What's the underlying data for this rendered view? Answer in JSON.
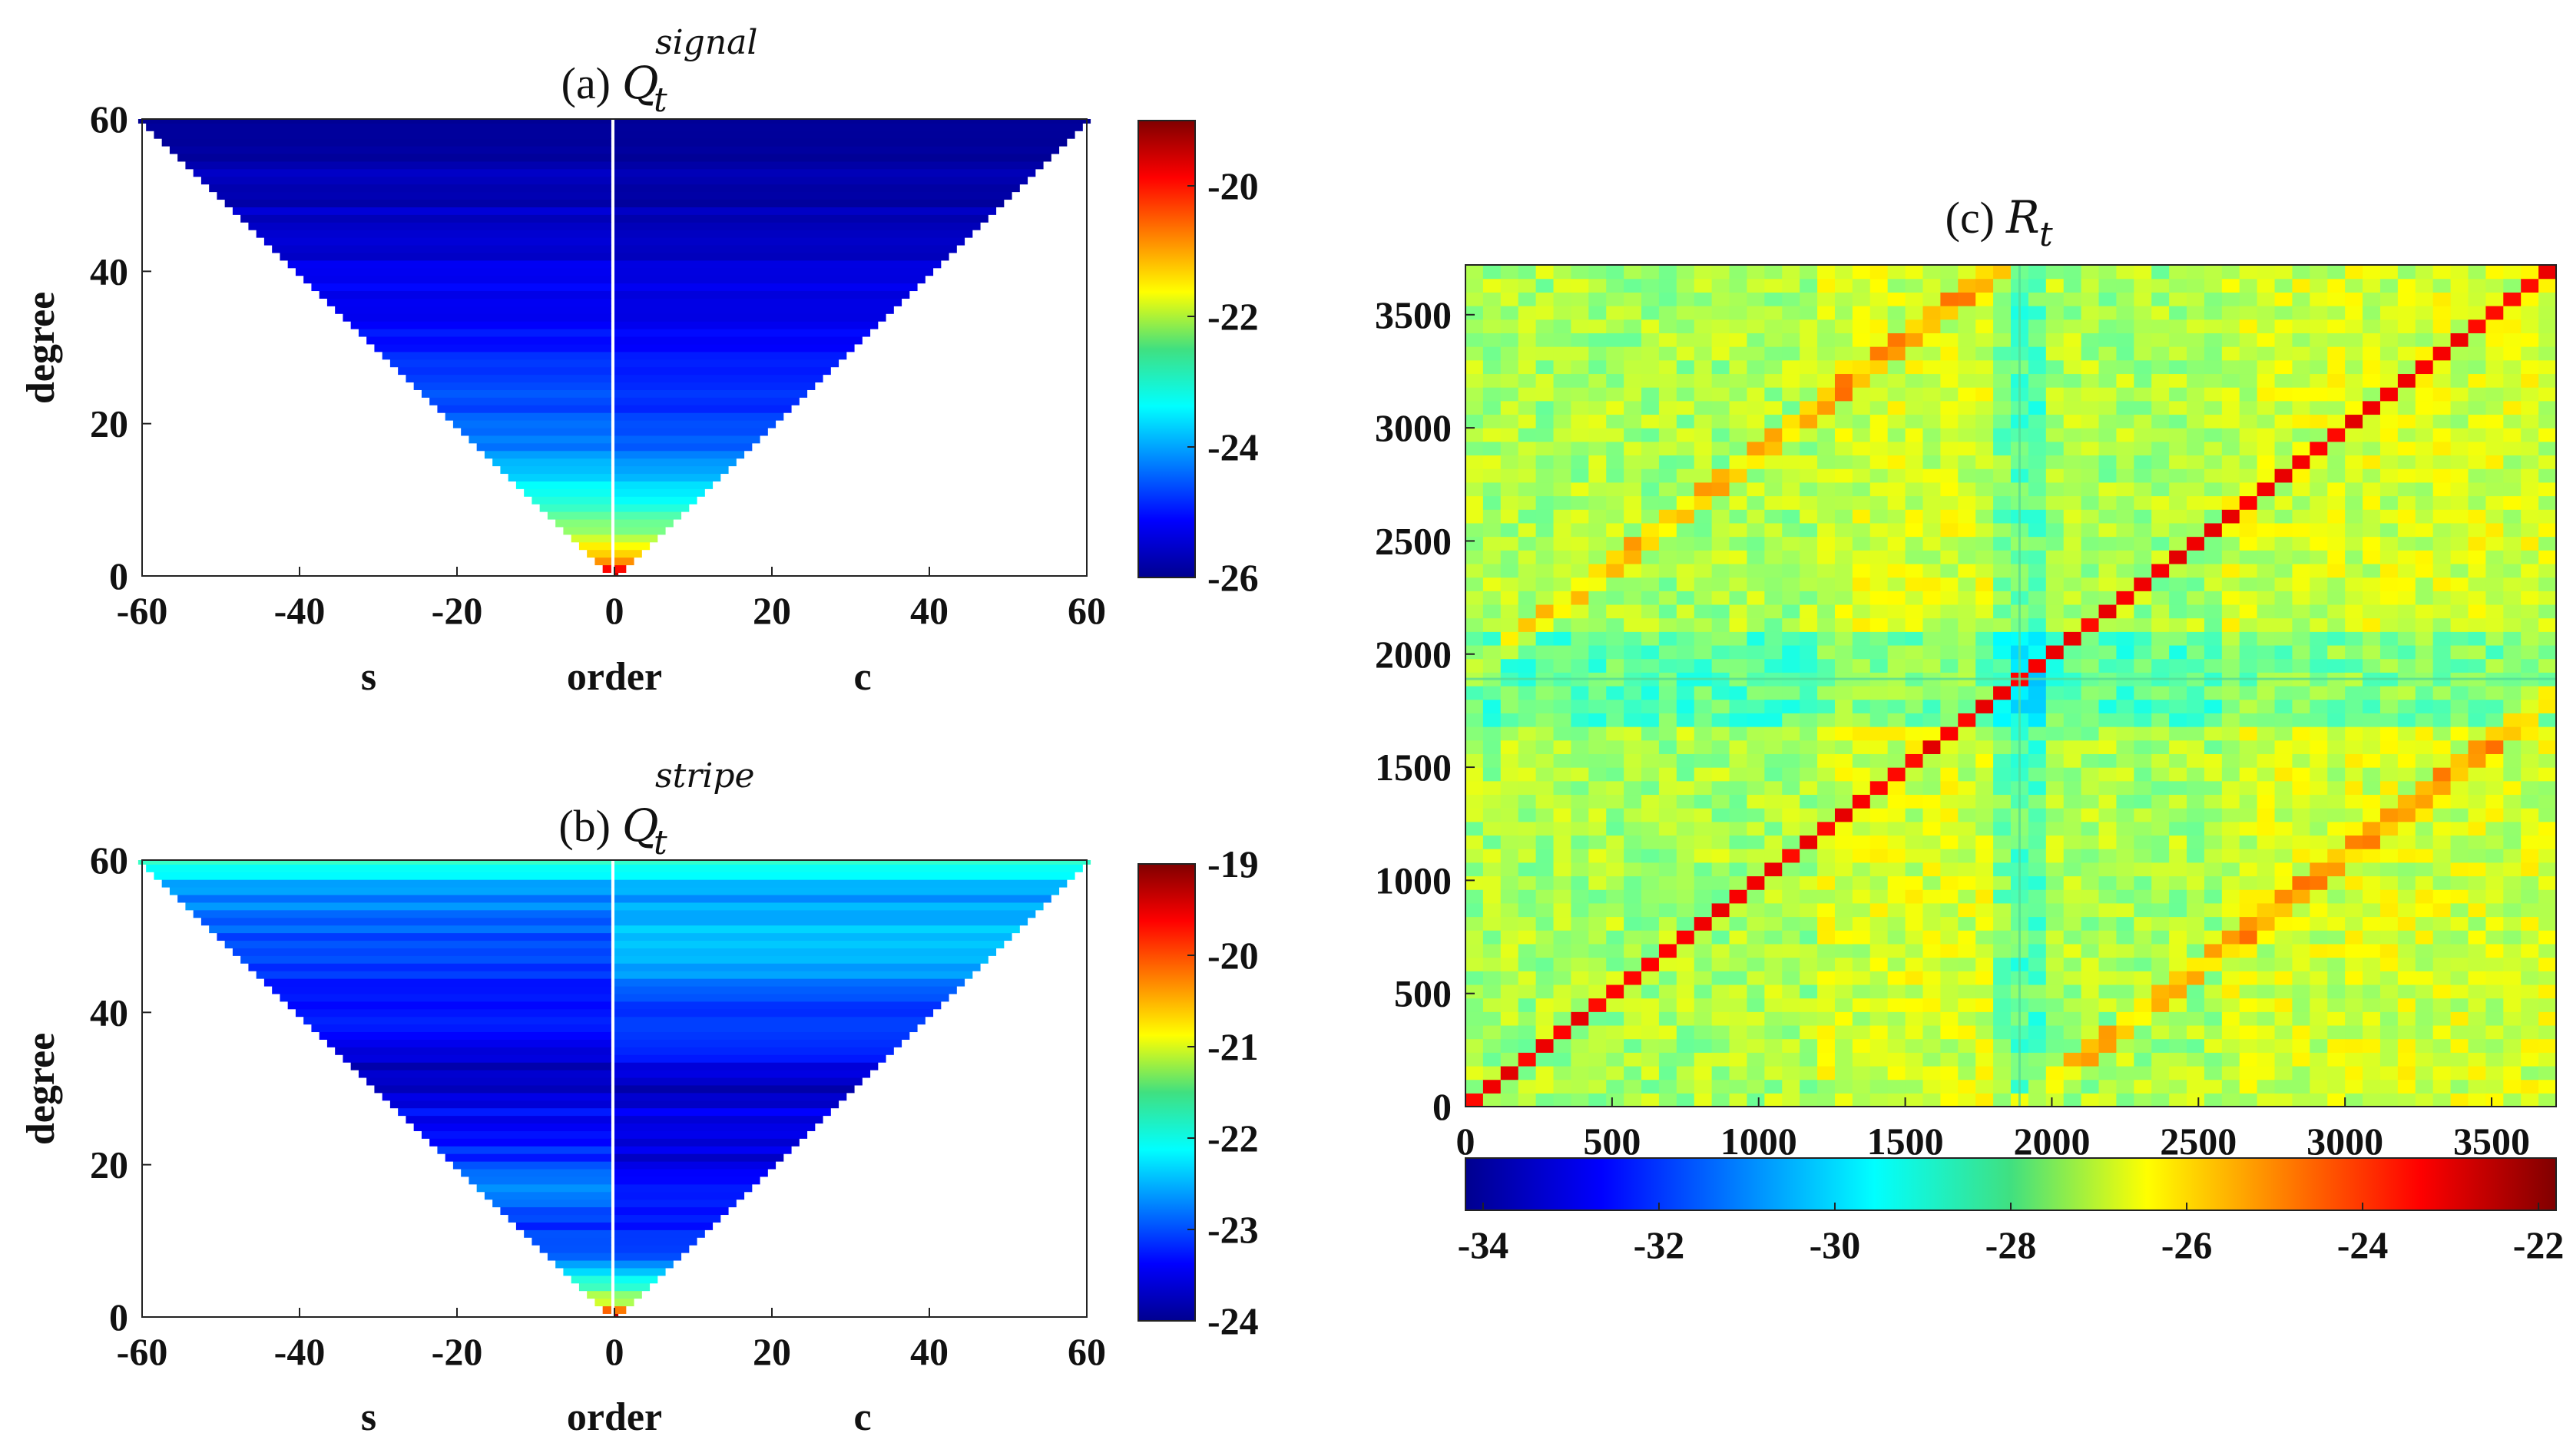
{
  "chart_data": [
    {
      "id": "a",
      "type": "heatmap",
      "title_prefix": "(a)",
      "title_symbol": "Q",
      "title_subscript": "t",
      "title_superscript": "signal",
      "xlabel_left": "s",
      "xlabel": "order",
      "xlabel_right": "c",
      "ylabel": "degree",
      "xlim": [
        -60,
        60
      ],
      "ylim": [
        0,
        60
      ],
      "xticks": [
        "-60",
        "-40",
        "-20",
        "0",
        "20",
        "40",
        "60"
      ],
      "yticks": [
        "0",
        "20",
        "40",
        "60"
      ],
      "colorbar": {
        "clim": [
          -26,
          -19
        ],
        "ticks": [
          "-20",
          "-22",
          "-24",
          "-26"
        ],
        "tick_values": [
          -20,
          -22,
          -24,
          -26
        ]
      },
      "degree_profile": {
        "degrees": [
          0,
          2,
          4,
          6,
          8,
          10,
          13,
          16,
          20,
          25,
          30,
          40,
          50,
          60
        ],
        "values_s": [
          -19.3,
          -20.8,
          -21.6,
          -22.3,
          -22.8,
          -23.2,
          -23.6,
          -24.1,
          -24.5,
          -24.7,
          -25.0,
          -25.3,
          -25.6,
          -25.8
        ],
        "values_c": [
          -19.3,
          -20.8,
          -21.7,
          -22.5,
          -22.9,
          -23.4,
          -23.8,
          -24.3,
          -24.7,
          -24.9,
          -25.1,
          -25.4,
          -25.7,
          -25.8
        ]
      }
    },
    {
      "id": "b",
      "type": "heatmap",
      "title_prefix": "(b)",
      "title_symbol": "Q",
      "title_subscript": "t",
      "title_superscript": "stripe",
      "xlabel_left": "s",
      "xlabel": "order",
      "xlabel_right": "c",
      "ylabel": "degree",
      "xlim": [
        -60,
        60
      ],
      "ylim": [
        0,
        60
      ],
      "xticks": [
        "-60",
        "-40",
        "-20",
        "0",
        "20",
        "40",
        "60"
      ],
      "yticks": [
        "0",
        "20",
        "40",
        "60"
      ],
      "colorbar": {
        "clim": [
          -24,
          -19
        ],
        "ticks": [
          "-19",
          "-20",
          "-21",
          "-22",
          "-23",
          "-24"
        ],
        "tick_values": [
          -19,
          -20,
          -21,
          -22,
          -23,
          -24
        ]
      },
      "degree_profile": {
        "degrees": [
          0,
          2,
          4,
          8,
          12,
          17,
          20,
          25,
          30,
          35,
          40,
          45,
          50,
          55,
          60
        ],
        "values_s": [
          -19.3,
          -21.0,
          -21.8,
          -22.9,
          -23.2,
          -22.6,
          -23.1,
          -23.3,
          -23.6,
          -23.7,
          -23.2,
          -23.1,
          -23.0,
          -22.7,
          -22.0
        ],
        "values_c": [
          -19.3,
          -21.2,
          -21.9,
          -23.0,
          -23.3,
          -23.2,
          -23.6,
          -23.4,
          -23.7,
          -23.3,
          -23.1,
          -22.6,
          -22.4,
          -22.6,
          -22.0
        ]
      }
    },
    {
      "id": "c",
      "type": "heatmap",
      "title_prefix": "(c)",
      "title_symbol": "R",
      "title_subscript": "t",
      "xlim": [
        0,
        3720
      ],
      "ylim": [
        0,
        3720
      ],
      "xticks": [
        "0",
        "500",
        "1000",
        "1500",
        "2000",
        "2500",
        "3000",
        "3500"
      ],
      "yticks": [
        "0",
        "500",
        "1000",
        "1500",
        "2000",
        "2500",
        "3000",
        "3500"
      ],
      "colorbar": {
        "clim": [
          -34.2,
          -21.8
        ],
        "ticks": [
          "-34",
          "-32",
          "-30",
          "-28",
          "-26",
          "-24",
          "-22"
        ],
        "tick_values": [
          -34,
          -32,
          -30,
          -28,
          -26,
          -24,
          -22
        ]
      },
      "background_value": -27.5,
      "diagonal_value": -23.0,
      "block_boundary": 1890
    }
  ]
}
